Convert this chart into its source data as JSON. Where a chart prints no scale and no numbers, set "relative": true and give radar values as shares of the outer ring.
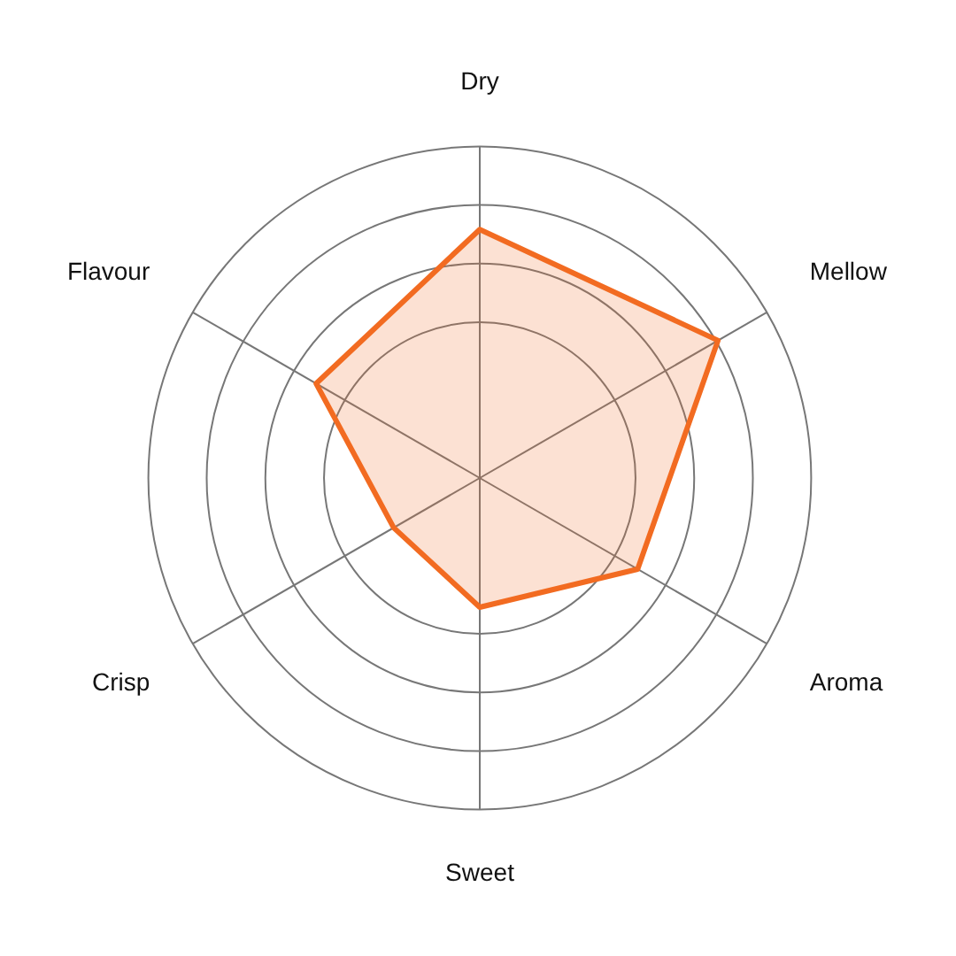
{
  "chart_data": {
    "type": "radar",
    "relative": true,
    "categories": [
      "Dry",
      "Mellow",
      "Aroma",
      "Sweet",
      "Crisp",
      "Flavour"
    ],
    "series": [
      {
        "color": "#f26b21",
        "values": [
          0.75,
          0.83,
          0.55,
          0.39,
          0.3,
          0.57
        ]
      }
    ],
    "marker": "none",
    "legend": false,
    "grid": true
  }
}
